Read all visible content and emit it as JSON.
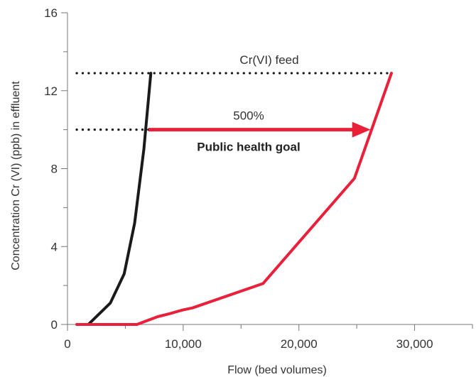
{
  "chart_data": {
    "type": "line",
    "title": "",
    "xlabel": "Flow (bed volumes)",
    "ylabel": "Concentration Cr (VI) (ppb) in effluent",
    "xlim": [
      0,
      35000
    ],
    "ylim": [
      0,
      16
    ],
    "x_ticks": [
      0,
      10000,
      20000,
      30000
    ],
    "x_tick_labels": [
      "0",
      "10,000",
      "20,000",
      "30,000"
    ],
    "y_ticks": [
      0,
      4,
      8,
      12,
      16
    ],
    "y_tick_labels": [
      "0",
      "4",
      "8",
      "12",
      "16"
    ],
    "grid": false,
    "series": [
      {
        "color": "#1a1a1a",
        "points": [
          [
            1800,
            0
          ],
          [
            3700,
            1.1
          ],
          [
            4900,
            2.6
          ],
          [
            5800,
            5.2
          ],
          [
            6600,
            9.0
          ],
          [
            7200,
            12.9
          ]
        ]
      },
      {
        "color": "#e8203a",
        "points": [
          [
            800,
            0
          ],
          [
            6000,
            0
          ],
          [
            7800,
            0.4
          ],
          [
            8800,
            0.55
          ],
          [
            10000,
            0.75
          ],
          [
            10800,
            0.85
          ],
          [
            16900,
            2.1
          ],
          [
            24800,
            7.5
          ],
          [
            28000,
            12.9
          ]
        ]
      }
    ],
    "reference_lines": [
      {
        "label": "Cr(VI) feed",
        "y": 12.9,
        "x_start": 800,
        "x_end": 28000,
        "style": "dotted"
      },
      {
        "label": "Public health goal",
        "y": 10,
        "x_start": 800,
        "x_end": 7000,
        "style": "dotted"
      }
    ],
    "arrow": {
      "label": "500%",
      "y": 10,
      "x_start": 7000,
      "x_end": 26200,
      "color": "#e8203a"
    }
  }
}
